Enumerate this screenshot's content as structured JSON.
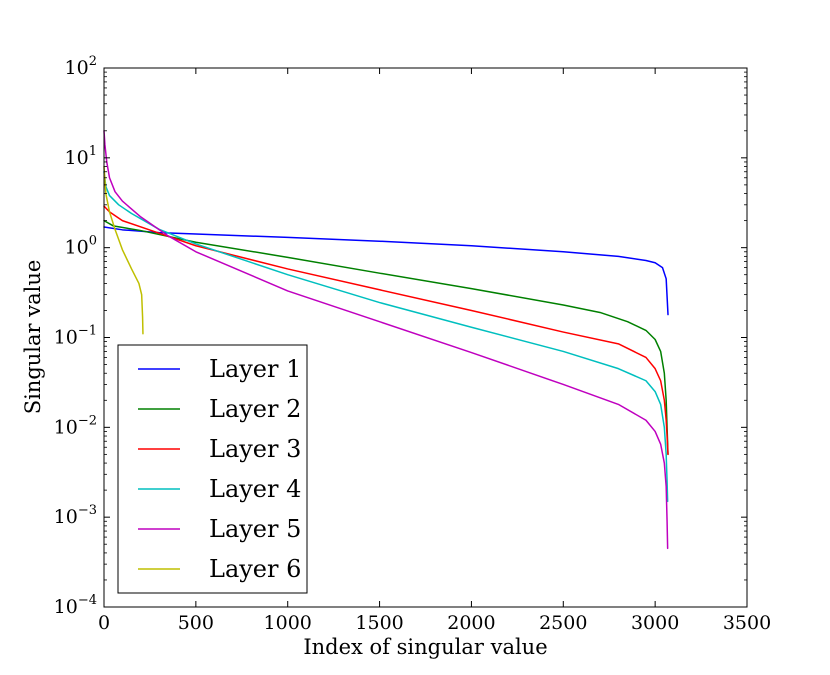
{
  "chart_data": {
    "type": "line",
    "title": "",
    "xlabel": "Index of singular value",
    "ylabel": "Singular value",
    "xlim": [
      0,
      3500
    ],
    "ylim": [
      0.0001,
      100
    ],
    "yscale": "log",
    "grid": false,
    "legend_position": "lower-left",
    "x_ticks": [
      {
        "value": 0,
        "label": "0"
      },
      {
        "value": 500,
        "label": "500"
      },
      {
        "value": 1000,
        "label": "1000"
      },
      {
        "value": 1500,
        "label": "1500"
      },
      {
        "value": 2000,
        "label": "2000"
      },
      {
        "value": 2500,
        "label": "2500"
      },
      {
        "value": 3000,
        "label": "3000"
      },
      {
        "value": 3500,
        "label": "3500"
      }
    ],
    "y_ticks": [
      {
        "value": 0.0001,
        "base": "10",
        "exponent": "−4"
      },
      {
        "value": 0.001,
        "base": "10",
        "exponent": "−3"
      },
      {
        "value": 0.01,
        "base": "10",
        "exponent": "−2"
      },
      {
        "value": 0.1,
        "base": "10",
        "exponent": "−1"
      },
      {
        "value": 1,
        "base": "10",
        "exponent": "0"
      },
      {
        "value": 10,
        "base": "10",
        "exponent": "1"
      },
      {
        "value": 100,
        "base": "10",
        "exponent": "2"
      }
    ],
    "series": [
      {
        "name": "Layer 1",
        "color": "#0000ff",
        "x": [
          0,
          100,
          300,
          500,
          1000,
          1500,
          2000,
          2500,
          2800,
          2950,
          3000,
          3040,
          3060,
          3070
        ],
        "y": [
          1.7,
          1.58,
          1.47,
          1.42,
          1.3,
          1.18,
          1.05,
          0.9,
          0.8,
          0.72,
          0.68,
          0.6,
          0.45,
          0.18
        ]
      },
      {
        "name": "Layer 2",
        "color": "#008000",
        "x": [
          0,
          50,
          200,
          500,
          1000,
          1500,
          2000,
          2500,
          2700,
          2850,
          2950,
          3000,
          3030,
          3050,
          3060,
          3065,
          3070
        ],
        "y": [
          2.0,
          1.75,
          1.55,
          1.15,
          0.78,
          0.52,
          0.35,
          0.23,
          0.19,
          0.15,
          0.12,
          0.095,
          0.07,
          0.04,
          0.02,
          0.01,
          0.005
        ]
      },
      {
        "name": "Layer 3",
        "color": "#ff0000",
        "x": [
          0,
          30,
          100,
          300,
          500,
          1000,
          1500,
          2000,
          2500,
          2800,
          2950,
          3000,
          3030,
          3050,
          3060,
          3065,
          3070
        ],
        "y": [
          2.9,
          2.5,
          2.0,
          1.45,
          1.05,
          0.58,
          0.34,
          0.2,
          0.115,
          0.085,
          0.06,
          0.045,
          0.033,
          0.02,
          0.012,
          0.008,
          0.005
        ]
      },
      {
        "name": "Layer 4",
        "color": "#00bfbf",
        "x": [
          0,
          10,
          30,
          80,
          150,
          300,
          500,
          1000,
          1500,
          2000,
          2500,
          2800,
          2950,
          3000,
          3030,
          3050,
          3060,
          3065,
          3068
        ],
        "y": [
          7.0,
          4.8,
          3.8,
          3.0,
          2.4,
          1.6,
          1.1,
          0.5,
          0.245,
          0.13,
          0.07,
          0.045,
          0.033,
          0.025,
          0.018,
          0.01,
          0.005,
          0.0025,
          0.0015
        ]
      },
      {
        "name": "Layer 5",
        "color": "#bf00bf",
        "x": [
          0,
          5,
          15,
          30,
          60,
          100,
          200,
          350,
          500,
          1000,
          1500,
          2000,
          2500,
          2800,
          2950,
          3000,
          3030,
          3050,
          3060,
          3065,
          3068
        ],
        "y": [
          20.0,
          14.0,
          9.0,
          6.0,
          4.2,
          3.3,
          2.2,
          1.35,
          0.9,
          0.33,
          0.15,
          0.068,
          0.03,
          0.018,
          0.012,
          0.009,
          0.0065,
          0.004,
          0.0022,
          0.0009,
          0.00045
        ]
      },
      {
        "name": "Layer 6",
        "color": "#bfbf00",
        "x": [
          0,
          10,
          30,
          60,
          100,
          150,
          190,
          205,
          210,
          212
        ],
        "y": [
          8.0,
          4.0,
          2.5,
          1.6,
          0.95,
          0.58,
          0.4,
          0.3,
          0.17,
          0.11
        ]
      }
    ]
  }
}
